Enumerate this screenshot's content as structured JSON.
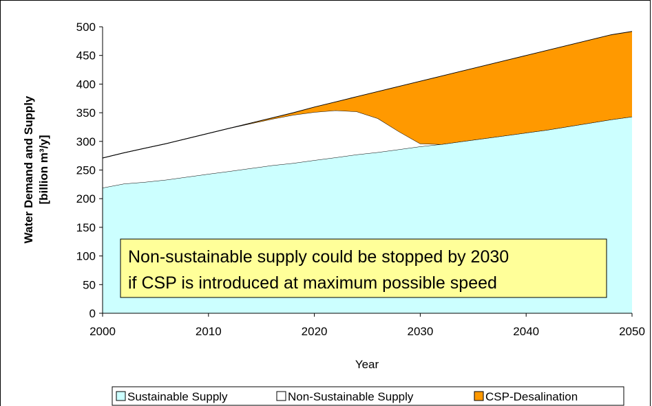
{
  "chart_data": {
    "type": "area",
    "xlabel": "Year",
    "ylabel_lines": [
      "Water Demand and Supply",
      "[billion m³/y]"
    ],
    "xlim": [
      2000,
      2050
    ],
    "ylim": [
      0,
      500
    ],
    "x_ticks": [
      2000,
      2010,
      2020,
      2030,
      2040,
      2050
    ],
    "y_ticks": [
      0,
      50,
      100,
      150,
      200,
      250,
      300,
      350,
      400,
      450,
      500
    ],
    "grid": false,
    "legend_position": "bottom",
    "x": [
      2000,
      2002,
      2004,
      2006,
      2008,
      2010,
      2012,
      2014,
      2016,
      2018,
      2020,
      2022,
      2024,
      2026,
      2028,
      2030,
      2032,
      2034,
      2036,
      2038,
      2040,
      2042,
      2044,
      2046,
      2048,
      2050
    ],
    "series": [
      {
        "name": "Sustainable Supply",
        "color": "#ccffff",
        "stack_top": [
          219,
          226,
          229,
          233,
          238,
          243,
          248,
          253,
          258,
          262,
          267,
          272,
          277,
          281,
          286,
          291,
          295,
          300,
          305,
          310,
          315,
          320,
          326,
          332,
          338,
          343
        ]
      },
      {
        "name": "Non-Sustainable Supply",
        "color": "#ffffff",
        "stack_top": [
          271,
          280,
          288,
          296,
          305,
          314,
          323,
          331,
          339,
          346,
          351,
          354,
          352,
          340,
          317,
          296,
          295,
          300,
          305,
          310,
          315,
          320,
          326,
          332,
          338,
          343
        ]
      },
      {
        "name": "CSP-Desalination",
        "color": "#ff9900",
        "stack_top": [
          271,
          280,
          288,
          296,
          305,
          314,
          323,
          332,
          341,
          350,
          360,
          369,
          378,
          387,
          396,
          405,
          414,
          423,
          432,
          441,
          450,
          459,
          468,
          477,
          486,
          492
        ]
      }
    ],
    "annotation": {
      "lines": [
        "Non-sustainable supply could be stopped by 2030",
        "if CSP is introduced at maximum possible speed"
      ],
      "background": "#ffff99"
    }
  }
}
